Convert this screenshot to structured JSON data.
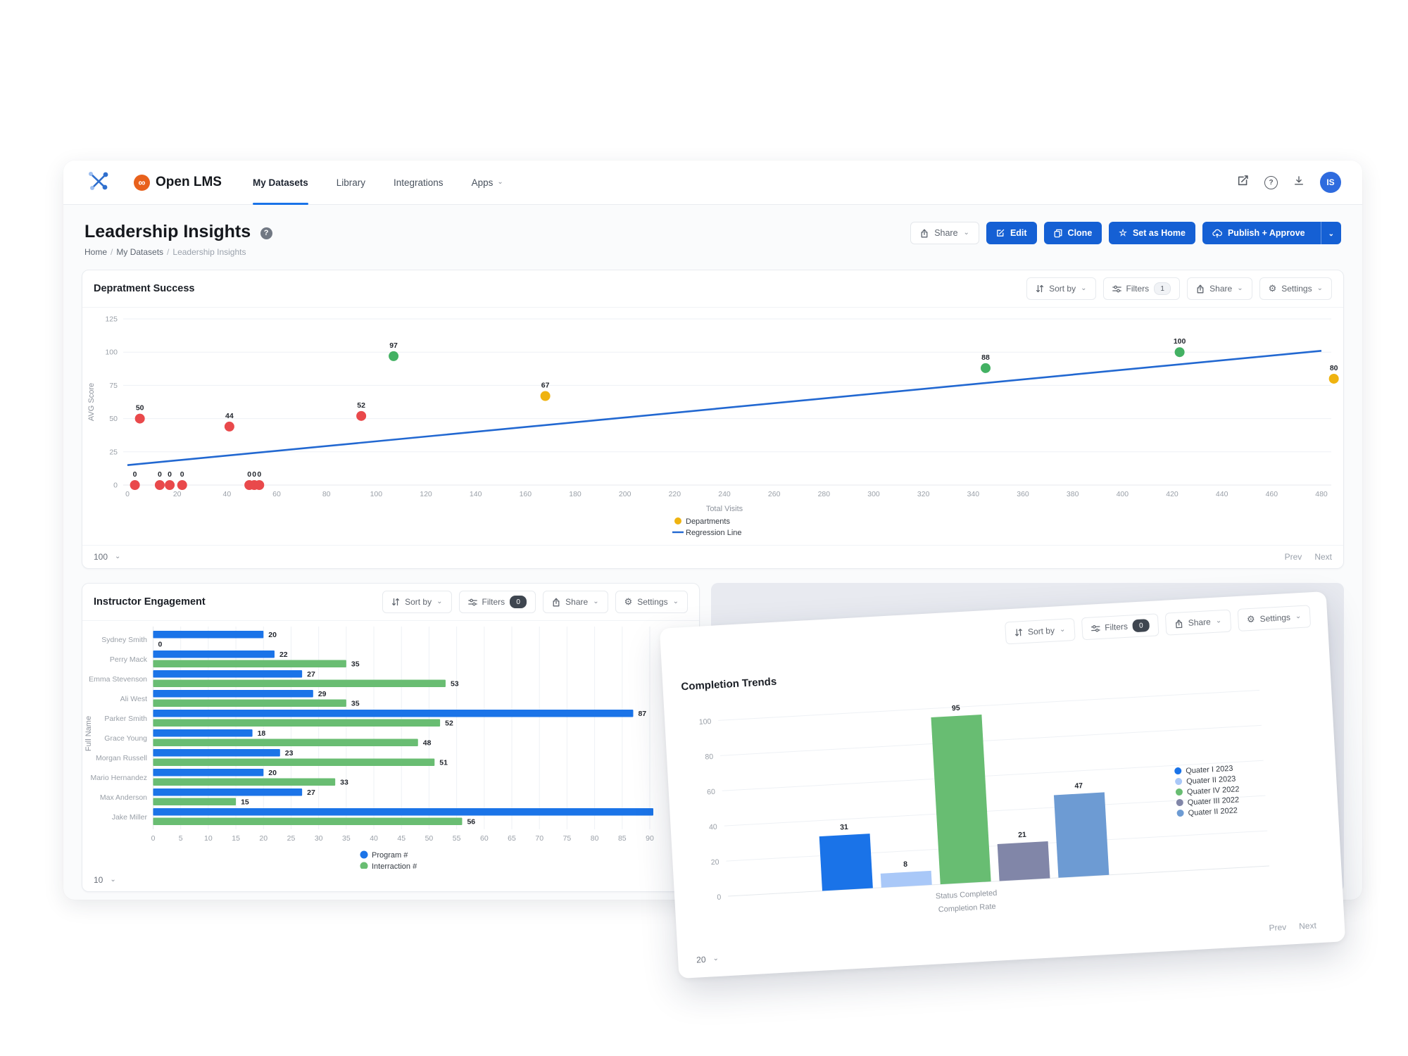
{
  "header": {
    "brand": "Open LMS",
    "nav": [
      {
        "label": "My Datasets",
        "active": true
      },
      {
        "label": "Library",
        "active": false
      },
      {
        "label": "Integrations",
        "active": false
      },
      {
        "label": "Apps",
        "active": false,
        "dropdown": true
      }
    ],
    "avatar_initials": "IS"
  },
  "page": {
    "title": "Leadership Insights",
    "breadcrumb": [
      "Home",
      "My Datasets",
      "Leadership Insights"
    ],
    "actions": [
      {
        "label": "Share",
        "style": "light",
        "icon": "share-icon",
        "dropdown": true
      },
      {
        "label": "Edit",
        "style": "primary",
        "icon": "edit-icon"
      },
      {
        "label": "Clone",
        "style": "primary",
        "icon": "clone-icon"
      },
      {
        "label": "Set as Home",
        "style": "primary",
        "icon": "star-icon"
      },
      {
        "label": "Publish + Approve",
        "style": "primary",
        "icon": "publish-icon",
        "split_dropdown": true
      }
    ]
  },
  "toolbar": {
    "sort": "Sort by",
    "filters": "Filters",
    "share": "Share",
    "settings": "Settings"
  },
  "pager": {
    "prev": "Prev",
    "next": "Next"
  },
  "charts": {
    "department_success": {
      "title": "Depratment Success",
      "filters_badge": "1",
      "badge_dark": false,
      "page_size": "100"
    },
    "instructor_engagement": {
      "title": "Instructor Engagement",
      "filters_badge": "0",
      "badge_dark": true,
      "page_size": "10"
    },
    "completion_trends": {
      "title": "Completion Trends",
      "filters_badge": "0",
      "badge_dark": true,
      "page_size": "20"
    }
  },
  "chart_data": [
    {
      "id": "department_success",
      "type": "scatter",
      "title": "Depratment Success",
      "xlabel": "Total Visits",
      "ylabel": "AVG Score",
      "xlim": [
        0,
        490
      ],
      "ylim": [
        0,
        125
      ],
      "x_ticks": [
        0,
        20,
        40,
        60,
        80,
        100,
        120,
        140,
        160,
        180,
        200,
        220,
        240,
        260,
        280,
        300,
        320,
        340,
        360,
        380,
        400,
        420,
        440,
        460,
        480
      ],
      "y_ticks": [
        0,
        25,
        50,
        75,
        100,
        125
      ],
      "points": [
        {
          "x": 3,
          "y": 0,
          "label": "0",
          "color": "#e9494b"
        },
        {
          "x": 13,
          "y": 0,
          "label": "0",
          "color": "#e9494b"
        },
        {
          "x": 17,
          "y": 0,
          "label": "0",
          "color": "#e9494b"
        },
        {
          "x": 22,
          "y": 0,
          "label": "0",
          "color": "#e9494b"
        },
        {
          "x": 49,
          "y": 0,
          "label": "0",
          "color": "#e9494b"
        },
        {
          "x": 51,
          "y": 0,
          "label": "0",
          "color": "#e9494b"
        },
        {
          "x": 53,
          "y": 0,
          "label": "0",
          "color": "#e9494b"
        },
        {
          "x": 5,
          "y": 50,
          "label": "50",
          "color": "#e9494b"
        },
        {
          "x": 41,
          "y": 44,
          "label": "44",
          "color": "#e9494b"
        },
        {
          "x": 94,
          "y": 52,
          "label": "52",
          "color": "#e9494b"
        },
        {
          "x": 107,
          "y": 97,
          "label": "97",
          "color": "#43b163"
        },
        {
          "x": 168,
          "y": 67,
          "label": "67",
          "color": "#efb310"
        },
        {
          "x": 345,
          "y": 88,
          "label": "88",
          "color": "#43b163"
        },
        {
          "x": 423,
          "y": 100,
          "label": "100",
          "color": "#43b163"
        },
        {
          "x": 485,
          "y": 80,
          "label": "80",
          "color": "#efb310"
        }
      ],
      "regression_line": {
        "x1": 0,
        "y1": 15,
        "x2": 480,
        "y2": 101,
        "color": "#2268d1"
      },
      "legend": [
        {
          "label": "Departments",
          "color": "#efb310",
          "type": "dot"
        },
        {
          "label": "Regression Line",
          "color": "#2268d1",
          "type": "line"
        }
      ]
    },
    {
      "id": "instructor_engagement",
      "type": "bar-horizontal",
      "title": "Instructor Engagement",
      "ylabel": "Full Name",
      "xlim": [
        0,
        90
      ],
      "x_ticks": [
        0,
        5,
        10,
        15,
        20,
        25,
        30,
        35,
        40,
        45,
        50,
        55,
        60,
        65,
        70,
        75,
        80,
        85,
        90
      ],
      "categories": [
        "Sydney Smith",
        "Perry Mack",
        "Emma Stevenson",
        "Ali West",
        "Parker Smith",
        "Grace Young",
        "Morgan Russell",
        "Mario Hernandez",
        "Max Anderson",
        "Jake Miller"
      ],
      "series": [
        {
          "name": "Program #",
          "color": "#1b74e8",
          "values": [
            20,
            22,
            27,
            29,
            87,
            18,
            23,
            20,
            27,
            91
          ]
        },
        {
          "name": "Interraction #",
          "color": "#69bd72",
          "values": [
            0,
            35,
            53,
            35,
            52,
            48,
            51,
            33,
            15,
            56
          ]
        }
      ],
      "hidden_value_labels": [
        {
          "series": 0,
          "index": 9
        }
      ],
      "legend_position": "bottom"
    },
    {
      "id": "completion_trends",
      "type": "bar",
      "title": "Completion Trends",
      "group_label_lines": [
        "Status Completed",
        "Completion Rate"
      ],
      "ylim": [
        0,
        100
      ],
      "y_ticks": [
        0,
        20,
        40,
        60,
        80,
        100
      ],
      "bars": [
        {
          "label": "Quater I 2023",
          "value": 31,
          "color": "#1a73e8"
        },
        {
          "label": "Quater II 2023",
          "value": 8,
          "color": "#a9c8f8"
        },
        {
          "label": "Quater IV 2022",
          "value": 95,
          "color": "#68bd72"
        },
        {
          "label": "Quater III 2022",
          "value": 21,
          "color": "#8186a8"
        },
        {
          "label": "Quater II 2022",
          "value": 47,
          "color": "#6d9bd3"
        }
      ],
      "legend_position": "right"
    }
  ],
  "icons": {
    "logo": "crossed-tools-logo-icon",
    "brand_glyph": "∞",
    "sort": "sort-arrows-icon",
    "filters": "filter-sliders-icon",
    "share": "share-icon",
    "settings": "gear-icon",
    "settings_glyph": "⚙",
    "chevron": "chevron-down-icon",
    "chevron_glyph": "⌄",
    "star_glyph": "☆",
    "help_glyph": "?",
    "compose": "compose-icon",
    "help": "help-icon",
    "download": "download-icon"
  },
  "colors": {
    "primary_blue": "#1560d4",
    "nav_active_blue": "#1a73e8",
    "brand_orange": "#e8611c",
    "avatar_blue": "#2f6bde",
    "grid": "#eef1f5"
  }
}
